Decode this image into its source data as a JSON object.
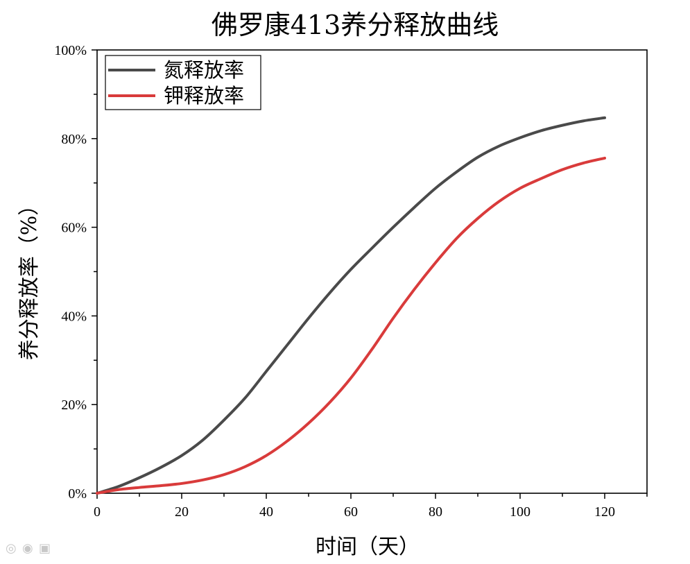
{
  "chart_data": {
    "type": "line",
    "title": "佛罗康413养分释放曲线",
    "xlabel": "时间（天）",
    "ylabel": "养分释放率（%）",
    "xlim": [
      0,
      130
    ],
    "ylim": [
      0,
      100
    ],
    "x_ticks": [
      0,
      20,
      40,
      60,
      80,
      100,
      120
    ],
    "x_tick_labels": [
      "0",
      "20",
      "40",
      "60",
      "80",
      "100",
      "120"
    ],
    "y_ticks": [
      0,
      20,
      40,
      60,
      80,
      100
    ],
    "y_tick_labels": [
      "0%",
      "20%",
      "40%",
      "60%",
      "80%",
      "100%"
    ],
    "grid": false,
    "legend_position": "top-left",
    "series": [
      {
        "name": "氮释放率",
        "color": "#4a4a4a",
        "x": [
          0,
          5,
          10,
          15,
          20,
          25,
          30,
          35,
          40,
          45,
          50,
          55,
          60,
          65,
          70,
          75,
          80,
          85,
          90,
          95,
          100,
          105,
          110,
          115,
          120
        ],
        "y": [
          0,
          1.5,
          3.5,
          5.8,
          8.5,
          12,
          16.5,
          21.5,
          27.5,
          33.5,
          39.5,
          45.2,
          50.5,
          55.3,
          60,
          64.5,
          68.8,
          72.5,
          75.8,
          78.3,
          80.2,
          81.8,
          83,
          84,
          84.7
        ]
      },
      {
        "name": "钾释放率",
        "color": "#d93b3b",
        "x": [
          0,
          5,
          10,
          15,
          20,
          25,
          30,
          35,
          40,
          45,
          50,
          55,
          60,
          65,
          70,
          75,
          80,
          85,
          90,
          95,
          100,
          105,
          110,
          115,
          120
        ],
        "y": [
          0,
          0.8,
          1.3,
          1.7,
          2.2,
          3.0,
          4.2,
          6.0,
          8.5,
          11.8,
          15.8,
          20.5,
          26.0,
          32.5,
          39.5,
          46,
          52,
          57.5,
          62,
          65.8,
          68.8,
          71,
          73,
          74.5,
          75.6
        ]
      }
    ]
  }
}
